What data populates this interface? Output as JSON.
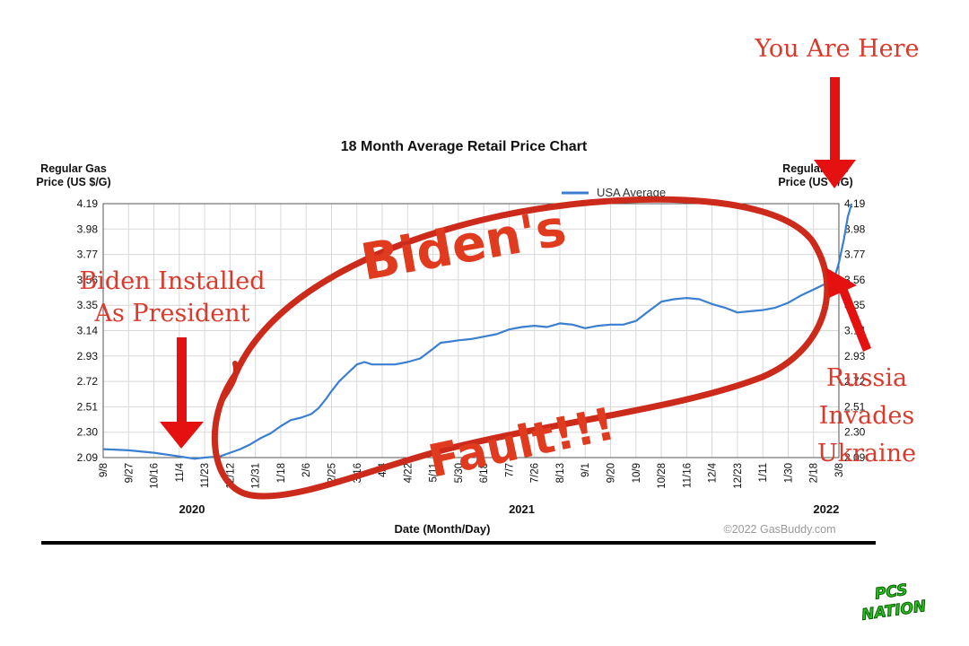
{
  "chart_data": {
    "type": "line",
    "title": "18 Month Average Retail Price Chart",
    "ylabel_left": [
      "Regular Gas",
      "Price (US $/G)"
    ],
    "ylabel_right": [
      "Regular Gas",
      "Price (US $/G)"
    ],
    "xlabel": "Date (Month/Day)",
    "yticks": [
      "4.19",
      "3.98",
      "3.77",
      "3.56",
      "3.35",
      "3.14",
      "2.93",
      "2.72",
      "2.51",
      "2.30",
      "2.09"
    ],
    "ylim": [
      2.09,
      4.19
    ],
    "xticks": [
      "9/8",
      "9/27",
      "10/16",
      "11/4",
      "11/23",
      "12/12",
      "12/31",
      "1/18",
      "2/6",
      "2/25",
      "3/16",
      "4/4",
      "4/22",
      "5/11",
      "5/30",
      "6/18",
      "7/7",
      "7/26",
      "8/13",
      "9/1",
      "9/20",
      "10/9",
      "10/28",
      "11/16",
      "12/4",
      "12/23",
      "1/11",
      "1/30",
      "2/18",
      "3/8"
    ],
    "years": [
      {
        "label": "2020",
        "tick_index": 3.5
      },
      {
        "label": "2021",
        "tick_index": 16.5
      },
      {
        "label": "2022",
        "tick_index": 28.5
      }
    ],
    "legend": "USA Average",
    "legend_position": "top-center",
    "grid": true,
    "line_color": "#3a7fd0",
    "series": [
      {
        "name": "USA Average",
        "points": [
          [
            0,
            2.16
          ],
          [
            1,
            2.15
          ],
          [
            2,
            2.13
          ],
          [
            3,
            2.1
          ],
          [
            3.6,
            2.08
          ],
          [
            4,
            2.09
          ],
          [
            4.6,
            2.1
          ],
          [
            5,
            2.13
          ],
          [
            5.4,
            2.16
          ],
          [
            5.8,
            2.2
          ],
          [
            6.2,
            2.25
          ],
          [
            6.6,
            2.29
          ],
          [
            7,
            2.35
          ],
          [
            7.4,
            2.4
          ],
          [
            7.8,
            2.42
          ],
          [
            8.2,
            2.45
          ],
          [
            8.5,
            2.5
          ],
          [
            8.8,
            2.58
          ],
          [
            9,
            2.64
          ],
          [
            9.3,
            2.72
          ],
          [
            9.6,
            2.78
          ],
          [
            10,
            2.86
          ],
          [
            10.3,
            2.88
          ],
          [
            10.6,
            2.86
          ],
          [
            11,
            2.86
          ],
          [
            11.5,
            2.86
          ],
          [
            12,
            2.88
          ],
          [
            12.5,
            2.91
          ],
          [
            13,
            2.99
          ],
          [
            13.3,
            3.04
          ],
          [
            13.7,
            3.05
          ],
          [
            14,
            3.06
          ],
          [
            14.5,
            3.07
          ],
          [
            15,
            3.09
          ],
          [
            15.5,
            3.11
          ],
          [
            16,
            3.15
          ],
          [
            16.5,
            3.17
          ],
          [
            17,
            3.18
          ],
          [
            17.5,
            3.17
          ],
          [
            18,
            3.2
          ],
          [
            18.5,
            3.19
          ],
          [
            19,
            3.16
          ],
          [
            19.5,
            3.18
          ],
          [
            20,
            3.19
          ],
          [
            20.5,
            3.19
          ],
          [
            21,
            3.22
          ],
          [
            21.5,
            3.3
          ],
          [
            22,
            3.38
          ],
          [
            22.5,
            3.4
          ],
          [
            23,
            3.41
          ],
          [
            23.5,
            3.4
          ],
          [
            24,
            3.36
          ],
          [
            24.5,
            3.33
          ],
          [
            25,
            3.29
          ],
          [
            25.5,
            3.3
          ],
          [
            26,
            3.31
          ],
          [
            26.5,
            3.33
          ],
          [
            27,
            3.37
          ],
          [
            27.5,
            3.43
          ],
          [
            28,
            3.48
          ],
          [
            28.4,
            3.52
          ],
          [
            28.8,
            3.56
          ],
          [
            29,
            3.7
          ],
          [
            29.2,
            3.9
          ],
          [
            29.35,
            4.08
          ],
          [
            29.5,
            4.19
          ]
        ]
      }
    ],
    "copyright": "©2022 GasBuddy.com"
  },
  "annotations": {
    "you_are_here": "You Are Here",
    "biden_installed": [
      "Biden Installed",
      "As President"
    ],
    "russia": [
      "Russia",
      "Invades",
      "Ukraine"
    ],
    "bidens": "Biden's",
    "fault": "Fault!!!"
  },
  "logo": [
    "PCS",
    "NATION"
  ],
  "colors": {
    "annotation_red": "#d93a2b",
    "arrow_red": "#e51010",
    "loop_red": "#cc2a1a",
    "logo_green": "#29c21a"
  }
}
